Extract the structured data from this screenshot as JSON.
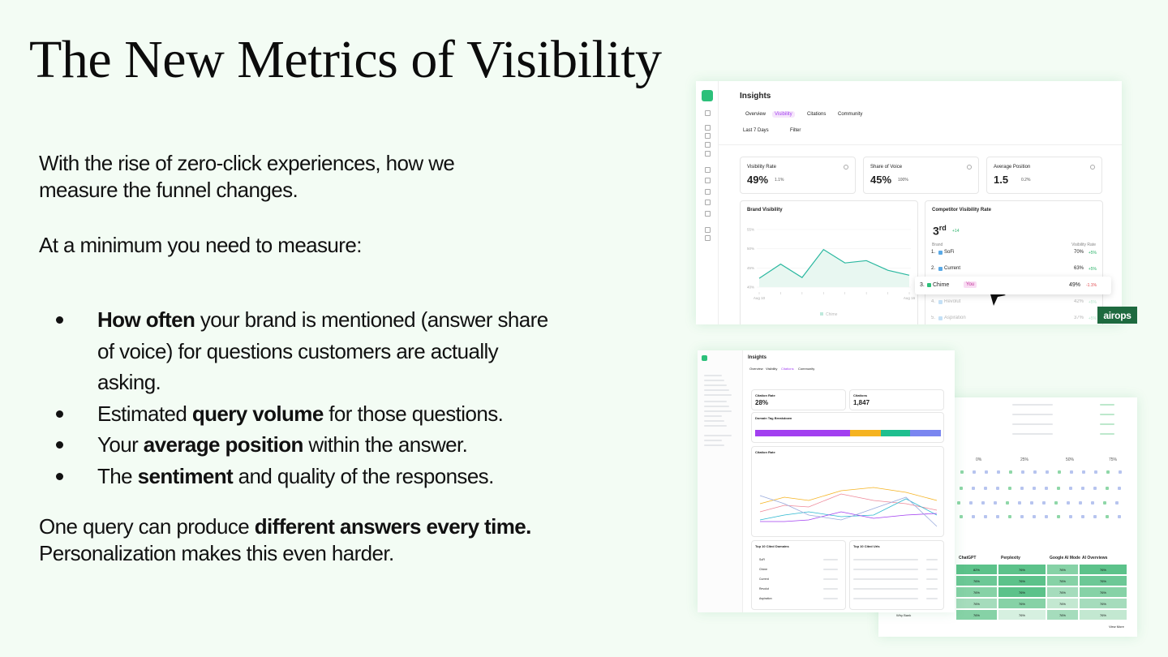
{
  "slide": {
    "title": "The New Metrics of Visibility",
    "intro": [
      "With the rise of zero-click experiences, how we",
      "measure the funnel changes."
    ],
    "lead": "At a minimum you need to measure:",
    "bullets": [
      [
        {
          "text": "How often",
          "strong": true
        },
        {
          "text": " your brand is mentioned (answer share of voice) for questions customers are actually asking."
        }
      ],
      [
        {
          "text": "Estimated "
        },
        {
          "text": "query volume",
          "strong": true
        },
        {
          "text": " for those questions."
        }
      ],
      [
        {
          "text": "Your "
        },
        {
          "text": "average position",
          "strong": true
        },
        {
          "text": " within the answer."
        }
      ],
      [
        {
          "text": "The "
        },
        {
          "text": "sentiment",
          "strong": true
        },
        {
          "text": " and quality of the responses."
        }
      ]
    ],
    "closing": [
      [
        {
          "text": "One query can produce "
        },
        {
          "text": "different answers every time.",
          "strong": true
        }
      ],
      [
        {
          "text": "Personalization makes this even harder."
        }
      ]
    ]
  },
  "visibility_screen": {
    "title": "Insights",
    "tabs": [
      "Overview",
      "Visibility",
      "Citations",
      "Community"
    ],
    "range": "Last 7 Days",
    "filter": "Filter",
    "cards": [
      {
        "label": "Visibility Rate",
        "value": "49%",
        "change": "1.1%"
      },
      {
        "label": "Share of Voice",
        "value": "45%",
        "change": "100%"
      },
      {
        "label": "Average Position",
        "value": "1.5",
        "change": "0.2%"
      }
    ],
    "brand_chart": {
      "title": "Brand Visibility",
      "ylim": [
        40,
        55
      ],
      "yticks": [
        {
          "value": 55,
          "label": "55%"
        },
        {
          "value": 50,
          "label": "50%"
        },
        {
          "value": 45,
          "label": "45%"
        },
        {
          "value": 40,
          "label": "40%"
        }
      ],
      "x_labels": [
        "Aug 10",
        "Aug 16"
      ],
      "values": [
        42.3,
        46,
        42.5,
        49.8,
        46.3,
        46.9,
        44.4,
        43.1
      ],
      "legend": "Chime"
    },
    "competitors": {
      "title": "Competitor Visibility Rate",
      "rank": "3",
      "rank_suffix": "rd",
      "rank_change": "+14",
      "col_brand": "Brand",
      "col_rate": "Visibility Rate",
      "rows": [
        {
          "pos": "1.",
          "name": "SoFi",
          "rate": "70%",
          "change": "+5%"
        },
        {
          "pos": "2.",
          "name": "Current",
          "rate": "63%",
          "change": "+5%"
        },
        {
          "pos": "3.",
          "name": "Chime",
          "badge": "You",
          "rate": "49%",
          "change": "-1.1%"
        },
        {
          "pos": "4.",
          "name": "Revolut",
          "rate": "42%",
          "change": "+5%"
        },
        {
          "pos": "5.",
          "name": "Aspiration",
          "rate": "37%",
          "change": "+5%"
        }
      ]
    },
    "logo": "airops"
  },
  "citations_screen": {
    "title": "Insights",
    "tabs": [
      "Overview",
      "Visibility",
      "Citations",
      "Community"
    ],
    "cards": [
      {
        "label": "Citation Rate",
        "value": "28%"
      },
      {
        "label": "Citations",
        "value": "1,847"
      }
    ],
    "breakdown_title": "Domain Tag Breakdown",
    "rate_title": "Citation Rate",
    "domains_title": "Top 10 Cited Domains",
    "urls_title": "Top 10 Cited Urls",
    "domains": [
      "SoFi",
      "Chime",
      "Current",
      "Revolut",
      "Aspiration"
    ]
  },
  "heatmap_screen": {
    "scale": [
      "0%",
      "25%",
      "50%",
      "75%"
    ],
    "columns": [
      "ChatGPT",
      "Perplexity",
      "Google AI Mode",
      "AI Overviews"
    ],
    "cells": [
      [
        "82%",
        "76%",
        "76%",
        "76%"
      ],
      [
        "76%",
        "76%",
        "76%",
        "76%"
      ],
      [
        "76%",
        "76%",
        "76%",
        "76%"
      ],
      [
        "76%",
        "76%",
        "76%",
        "76%"
      ],
      [
        "76%",
        "76%",
        "76%",
        "76%"
      ]
    ],
    "row_label": "Why Bank",
    "more": "View More"
  }
}
